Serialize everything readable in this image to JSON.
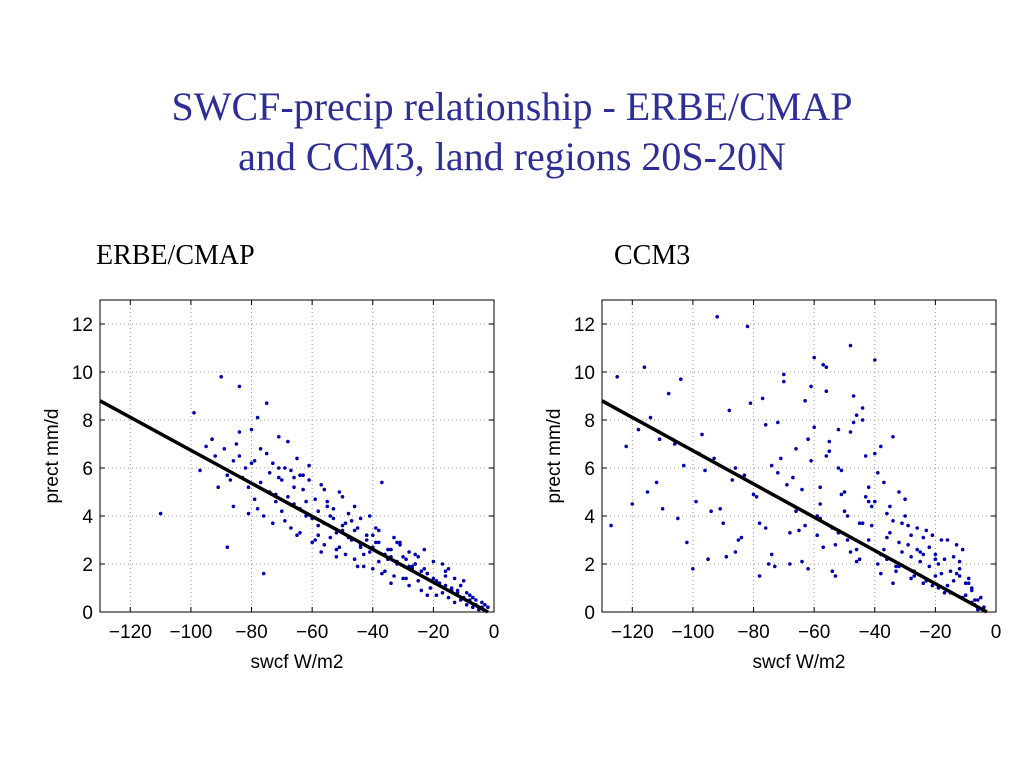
{
  "slide": {
    "title_line1": "SWCF-precip relationship - ERBE/CMAP",
    "title_line2": "and CCM3, land regions 20S-20N",
    "title_color": "#2e2e96"
  },
  "chart_data": [
    {
      "type": "scatter",
      "title": "ERBE/CMAP",
      "xlabel": "swcf W/m2",
      "ylabel": "prect mm/d",
      "xlim": [
        -130,
        0
      ],
      "ylim": [
        0,
        13
      ],
      "xticks": [
        -120,
        -100,
        -80,
        -60,
        -40,
        -20,
        0
      ],
      "yticks": [
        0,
        2,
        4,
        6,
        8,
        10,
        12
      ],
      "grid": true,
      "point_color": "#0000b4",
      "fit_line": {
        "x": [
          -130,
          -2
        ],
        "y": [
          8.8,
          0.0
        ],
        "color": "#000000"
      },
      "series": [
        {
          "x": [
            -110,
            -99,
            -97,
            -95,
            -92,
            -90,
            -88,
            -87,
            -85,
            -84,
            -82,
            -81,
            -80,
            -79,
            -78,
            -77,
            -76,
            -75,
            -74,
            -73,
            -72,
            -71,
            -70,
            -69,
            -68,
            -67,
            -66,
            -65,
            -64,
            -63,
            -62,
            -61,
            -60,
            -59,
            -58,
            -57,
            -56,
            -55,
            -54,
            -53,
            -52,
            -51,
            -50,
            -49,
            -48,
            -47,
            -46,
            -45,
            -44,
            -43,
            -42,
            -41,
            -40,
            -39,
            -38,
            -37,
            -36,
            -35,
            -34,
            -33,
            -32,
            -31,
            -30,
            -29,
            -28,
            -27,
            -26,
            -25,
            -24,
            -23,
            -22,
            -21,
            -20,
            -19,
            -18,
            -17,
            -16,
            -15,
            -14,
            -13,
            -12,
            -11,
            -10,
            -9,
            -8,
            -7,
            -6,
            -5,
            -4,
            -3,
            -2,
            -89,
            -86,
            -83,
            -80,
            -77,
            -74,
            -72,
            -70,
            -68,
            -66,
            -64,
            -62,
            -60,
            -58,
            -56,
            -54,
            -52,
            -50,
            -48,
            -46,
            -44,
            -42,
            -40,
            -38,
            -36,
            -34,
            -32,
            -30,
            -28,
            -26,
            -24,
            -22,
            -20,
            -18,
            -16,
            -14,
            -12,
            -10,
            -8,
            -6,
            -4,
            -91,
            -88,
            -84,
            -79,
            -75,
            -71,
            -67,
            -63,
            -59,
            -55,
            -51,
            -47,
            -43,
            -39,
            -35,
            -31,
            -27,
            -23,
            -19,
            -15,
            -11,
            -7,
            -93,
            -86,
            -81,
            -76,
            -69,
            -65,
            -61,
            -57,
            -53,
            -49,
            -45,
            -41,
            -37,
            -33,
            -29,
            -25,
            -21,
            -17,
            -13,
            -9,
            -78,
            -73,
            -66,
            -58,
            -52,
            -46,
            -40,
            -34,
            -28,
            -22,
            -84,
            -71,
            -64,
            -56,
            -50,
            -44,
            -38,
            -32,
            -26,
            -16
          ],
          "y": [
            4.1,
            8.3,
            5.9,
            6.9,
            6.5,
            9.8,
            2.7,
            5.5,
            7.0,
            9.4,
            6.0,
            5.2,
            7.6,
            6.3,
            8.1,
            6.8,
            1.6,
            8.7,
            5.0,
            6.2,
            4.6,
            7.3,
            4.2,
            3.8,
            7.1,
            5.9,
            4.5,
            6.4,
            3.3,
            5.1,
            4.0,
            6.1,
            2.9,
            4.7,
            3.6,
            5.3,
            2.8,
            4.4,
            3.1,
            3.9,
            2.6,
            5.0,
            3.4,
            2.4,
            4.1,
            3.0,
            2.2,
            3.5,
            2.7,
            1.9,
            3.2,
            2.5,
            1.8,
            2.9,
            2.1,
            5.4,
            1.7,
            2.6,
            2.3,
            1.5,
            2.0,
            2.8,
            1.4,
            2.2,
            1.1,
            1.9,
            2.4,
            1.3,
            0.9,
            1.8,
            1.6,
            1.0,
            2.1,
            0.7,
            1.2,
            0.8,
            1.5,
            0.6,
            1.0,
            0.4,
            0.9,
            0.5,
            1.3,
            0.3,
            0.7,
            0.2,
            0.5,
            0.1,
            0.4,
            0.3,
            0.2,
            6.8,
            6.3,
            5.6,
            6.2,
            5.4,
            5.8,
            4.9,
            5.5,
            4.8,
            5.2,
            4.3,
            4.6,
            3.9,
            4.2,
            3.7,
            4.0,
            3.3,
            3.6,
            3.1,
            3.4,
            2.8,
            3.0,
            2.7,
            2.9,
            2.4,
            2.6,
            2.1,
            2.3,
            1.9,
            2.0,
            1.7,
            1.6,
            1.4,
            1.2,
            1.1,
            0.9,
            0.8,
            0.6,
            0.5,
            0.3,
            0.2,
            5.2,
            5.7,
            6.5,
            4.7,
            6.6,
            5.6,
            3.5,
            5.7,
            3.0,
            4.6,
            2.7,
            3.8,
            2.4,
            3.5,
            2.2,
            2.9,
            1.8,
            2.6,
            1.3,
            1.8,
            1.1,
            0.6,
            7.2,
            4.4,
            4.1,
            4.0,
            6.0,
            3.2,
            5.5,
            2.5,
            4.3,
            3.7,
            1.9,
            4.0,
            1.6,
            3.1,
            1.4,
            2.3,
            1.0,
            2.0,
            1.4,
            0.8,
            4.3,
            3.7,
            5.6,
            3.2,
            2.3,
            4.4,
            3.2,
            1.2,
            2.5,
            0.7,
            7.5,
            6.0,
            5.7,
            5.1,
            4.8,
            3.9,
            3.4,
            2.9,
            2.0,
            1.7
          ]
        }
      ]
    },
    {
      "type": "scatter",
      "title": "CCM3",
      "xlabel": "swcf W/m2",
      "ylabel": "prect mm/d",
      "xlim": [
        -130,
        0
      ],
      "ylim": [
        0,
        13
      ],
      "xticks": [
        -120,
        -100,
        -80,
        -60,
        -40,
        -20,
        0
      ],
      "yticks": [
        0,
        2,
        4,
        6,
        8,
        10,
        12
      ],
      "grid": true,
      "point_color": "#0000b4",
      "fit_line": {
        "x": [
          -130,
          -3
        ],
        "y": [
          8.8,
          0.0
        ],
        "color": "#000000"
      },
      "series": [
        {
          "x": [
            -127,
            -125,
            -122,
            -120,
            -118,
            -116,
            -114,
            -112,
            -110,
            -108,
            -106,
            -104,
            -102,
            -100,
            -98,
            -96,
            -94,
            -92,
            -90,
            -88,
            -86,
            -84,
            -82,
            -80,
            -78,
            -76,
            -74,
            -72,
            -70,
            -68,
            -66,
            -64,
            -62,
            -60,
            -58,
            -56,
            -54,
            -52,
            -50,
            -48,
            -46,
            -44,
            -42,
            -40,
            -38,
            -36,
            -34,
            -32,
            -30,
            -28,
            -26,
            -24,
            -22,
            -20,
            -18,
            -16,
            -14,
            -12,
            -10,
            -8,
            -6,
            -4,
            -93,
            -87,
            -79,
            -76,
            -72,
            -69,
            -66,
            -63,
            -61,
            -59,
            -57,
            -55,
            -53,
            -51,
            -49,
            -47,
            -45,
            -43,
            -41,
            -39,
            -37,
            -35,
            -33,
            -31,
            -29,
            -27,
            -25,
            -23,
            -21,
            -19,
            -17,
            -15,
            -13,
            -11,
            -9,
            -7,
            -5,
            -115,
            -105,
            -97,
            -89,
            -83,
            -77,
            -73,
            -71,
            -67,
            -65,
            -62,
            -60,
            -58,
            -56,
            -54,
            -52,
            -50,
            -48,
            -46,
            -44,
            -42,
            -40,
            -38,
            -36,
            -34,
            -32,
            -30,
            -28,
            -26,
            -24,
            -22,
            -20,
            -18,
            -16,
            -14,
            -12,
            -10,
            -8,
            -6,
            -103,
            -95,
            -91,
            -85,
            -81,
            -75,
            -70,
            -64,
            -59,
            -57,
            -55,
            -53,
            -51,
            -49,
            -47,
            -45,
            -43,
            -41,
            -39,
            -37,
            -35,
            -33,
            -31,
            -29,
            -27,
            -25,
            -23,
            -21,
            -19,
            -17,
            -15,
            -13,
            -11,
            -9,
            -7,
            -111,
            -99,
            -86,
            -78,
            -74,
            -68,
            -63,
            -61,
            -58,
            -56,
            -52,
            -48,
            -46,
            -44,
            -42,
            -40,
            -38,
            -36,
            -34,
            -32,
            -28,
            -24,
            -20,
            -16,
            -12,
            -8
          ],
          "y": [
            3.6,
            9.8,
            6.9,
            4.5,
            7.6,
            10.2,
            8.1,
            5.4,
            4.3,
            9.1,
            7.0,
            9.7,
            2.9,
            1.8,
            6.6,
            5.9,
            4.2,
            12.3,
            3.7,
            8.4,
            6.0,
            3.1,
            11.9,
            4.9,
            1.5,
            7.8,
            2.4,
            5.8,
            9.9,
            3.3,
            6.8,
            2.1,
            7.2,
            10.6,
            3.9,
            9.2,
            1.7,
            7.6,
            5.0,
            11.1,
            2.6,
            8.5,
            4.6,
            10.5,
            6.9,
            2.2,
            3.8,
            2.9,
            4.0,
            1.4,
            2.6,
            3.1,
            1.9,
            2.4,
            1.6,
            0.9,
            1.3,
            1.8,
            0.7,
            1.0,
            0.5,
            0.2,
            6.4,
            5.5,
            4.8,
            3.5,
            7.9,
            5.3,
            4.2,
            8.8,
            6.3,
            3.2,
            10.3,
            7.1,
            2.8,
            5.9,
            4.0,
            9.0,
            3.7,
            6.5,
            4.4,
            2.0,
            5.4,
            3.3,
            1.7,
            2.5,
            3.6,
            1.5,
            2.1,
            3.4,
            1.1,
            2.0,
            0.8,
            1.7,
            2.8,
            0.6,
            1.4,
            0.3,
            0.6,
            5.0,
            3.9,
            7.4,
            2.3,
            5.7,
            8.9,
            1.9,
            6.4,
            5.6,
            3.4,
            1.8,
            7.7,
            5.2,
            10.2,
            3.5,
            6.0,
            4.2,
            2.5,
            8.2,
            3.7,
            5.2,
            4.6,
            2.4,
            3.1,
            7.3,
            1.9,
            4.7,
            2.3,
            3.5,
            1.2,
            2.7,
            2.2,
            3.0,
            1.1,
            2.3,
            1.5,
            1.2,
            0.4,
            0.1,
            6.1,
            2.2,
            4.3,
            3.0,
            8.7,
            2.0,
            9.6,
            5.1,
            4.0,
            2.7,
            6.7,
            1.5,
            4.9,
            3.0,
            7.9,
            2.2,
            4.8,
            3.6,
            5.8,
            2.6,
            4.4,
            1.9,
            3.7,
            2.8,
            1.7,
            2.5,
            1.3,
            3.2,
            1.0,
            2.2,
            0.8,
            1.6,
            2.6,
            1.2,
            0.5,
            7.2,
            4.6,
            2.5,
            3.7,
            6.1,
            2.0,
            3.6,
            9.4,
            4.5,
            6.5,
            3.3,
            7.5,
            2.1,
            8.0,
            3.0,
            6.6,
            1.6,
            4.1,
            1.2,
            5.0,
            3.2,
            2.4,
            1.5,
            3.0,
            2.1,
            0.9
          ]
        }
      ]
    }
  ]
}
